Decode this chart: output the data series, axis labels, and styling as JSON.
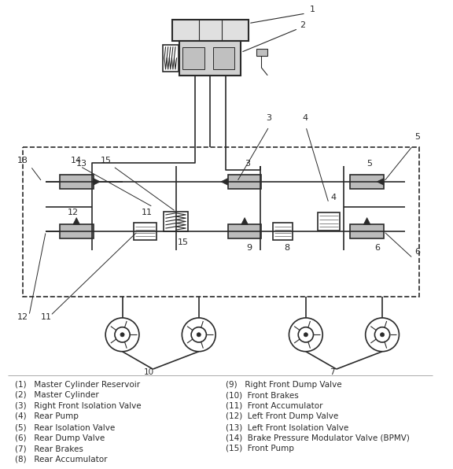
{
  "bg_color": "#ffffff",
  "diagram_color": "#2a2a2a",
  "legend_left": [
    "(1)   Master Cylinder Reservoir",
    "(2)   Master Cylinder",
    "(3)   Right Front Isolation Valve",
    "(4)   Rear Pump",
    "(5)   Rear Isolation Valve",
    "(6)   Rear Dump Valve",
    "(7)   Rear Brakes",
    "(8)   Rear Accumulator"
  ],
  "legend_right": [
    "(9)   Right Front Dump Valve",
    "(10)  Front Brakes",
    "(11)  Front Accumulator",
    "(12)  Left Front Dump Valve",
    "(13)  Left Front Isolation Valve",
    "(14)  Brake Pressure Modulator Valve (BPMV)",
    "(15)  Front Pump"
  ],
  "fig_width": 5.76,
  "fig_height": 5.96,
  "dpi": 100
}
